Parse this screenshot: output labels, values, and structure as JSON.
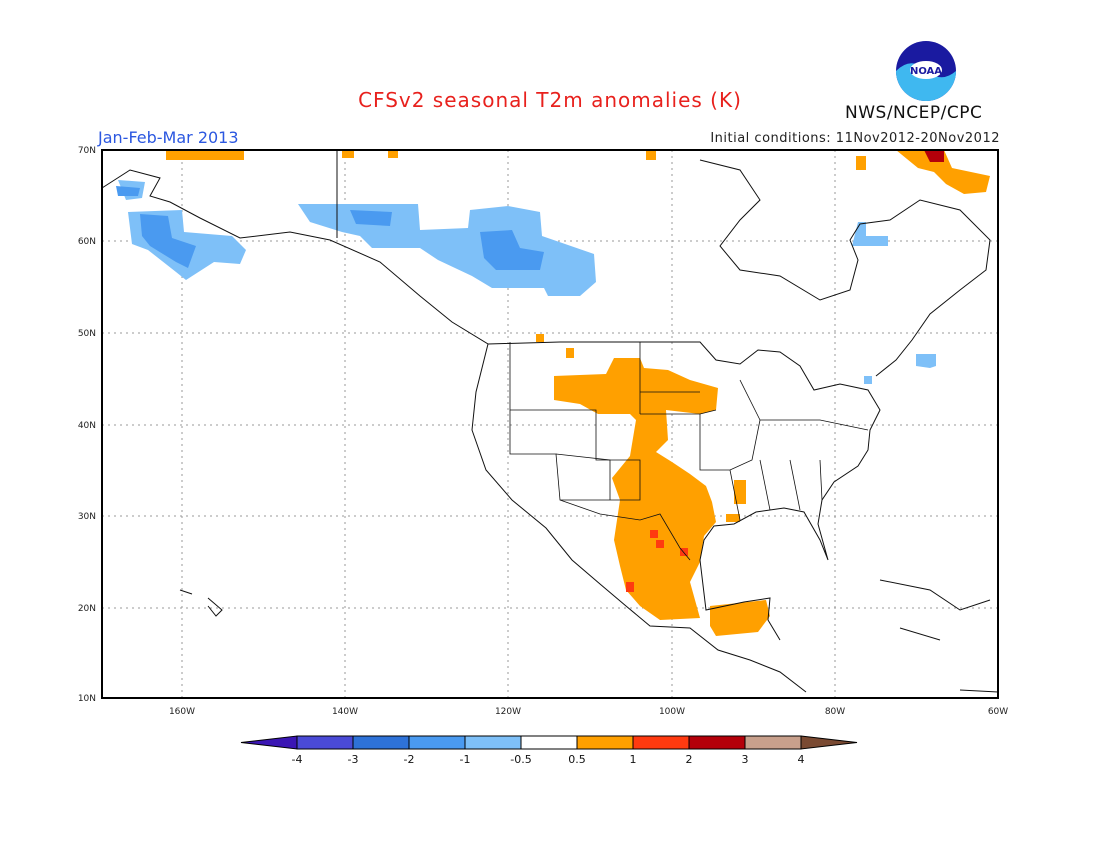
{
  "title": "CFSv2 seasonal T2m anomalies (K)",
  "period": "Jan-Feb-Mar 2013",
  "initial_conditions": "Initial conditions: 11Nov2012-20Nov2012",
  "agency": "NWS/NCEP/CPC",
  "logo_text": "NOAA",
  "map": {
    "lat_labels": [
      "70N",
      "60N",
      "50N",
      "40N",
      "30N",
      "20N",
      "10N"
    ],
    "lon_labels": [
      "160W",
      "140W",
      "120W",
      "100W",
      "80W",
      "60W"
    ],
    "lat_range": [
      10,
      70
    ],
    "lon_range": [
      -170,
      -60
    ],
    "gridlines": true
  },
  "colorbar": {
    "labels": [
      "-4",
      "-3",
      "-2",
      "-1",
      "-0.5",
      "0.5",
      "1",
      "2",
      "3",
      "4"
    ],
    "colors": [
      "#3b16b4",
      "#4a4ad6",
      "#2e72d8",
      "#4a9af0",
      "#7ec0f8",
      "#ffffff",
      "#ffa000",
      "#ff3a10",
      "#b4000a",
      "#c8a08c",
      "#7a4a32"
    ]
  },
  "anomaly_colors": {
    "neg_light": "#7ec0f8",
    "neg_mid": "#4a9af0",
    "pos_light": "#ffa000",
    "pos_mid": "#ff3a10",
    "pos_strong": "#b4000a"
  }
}
